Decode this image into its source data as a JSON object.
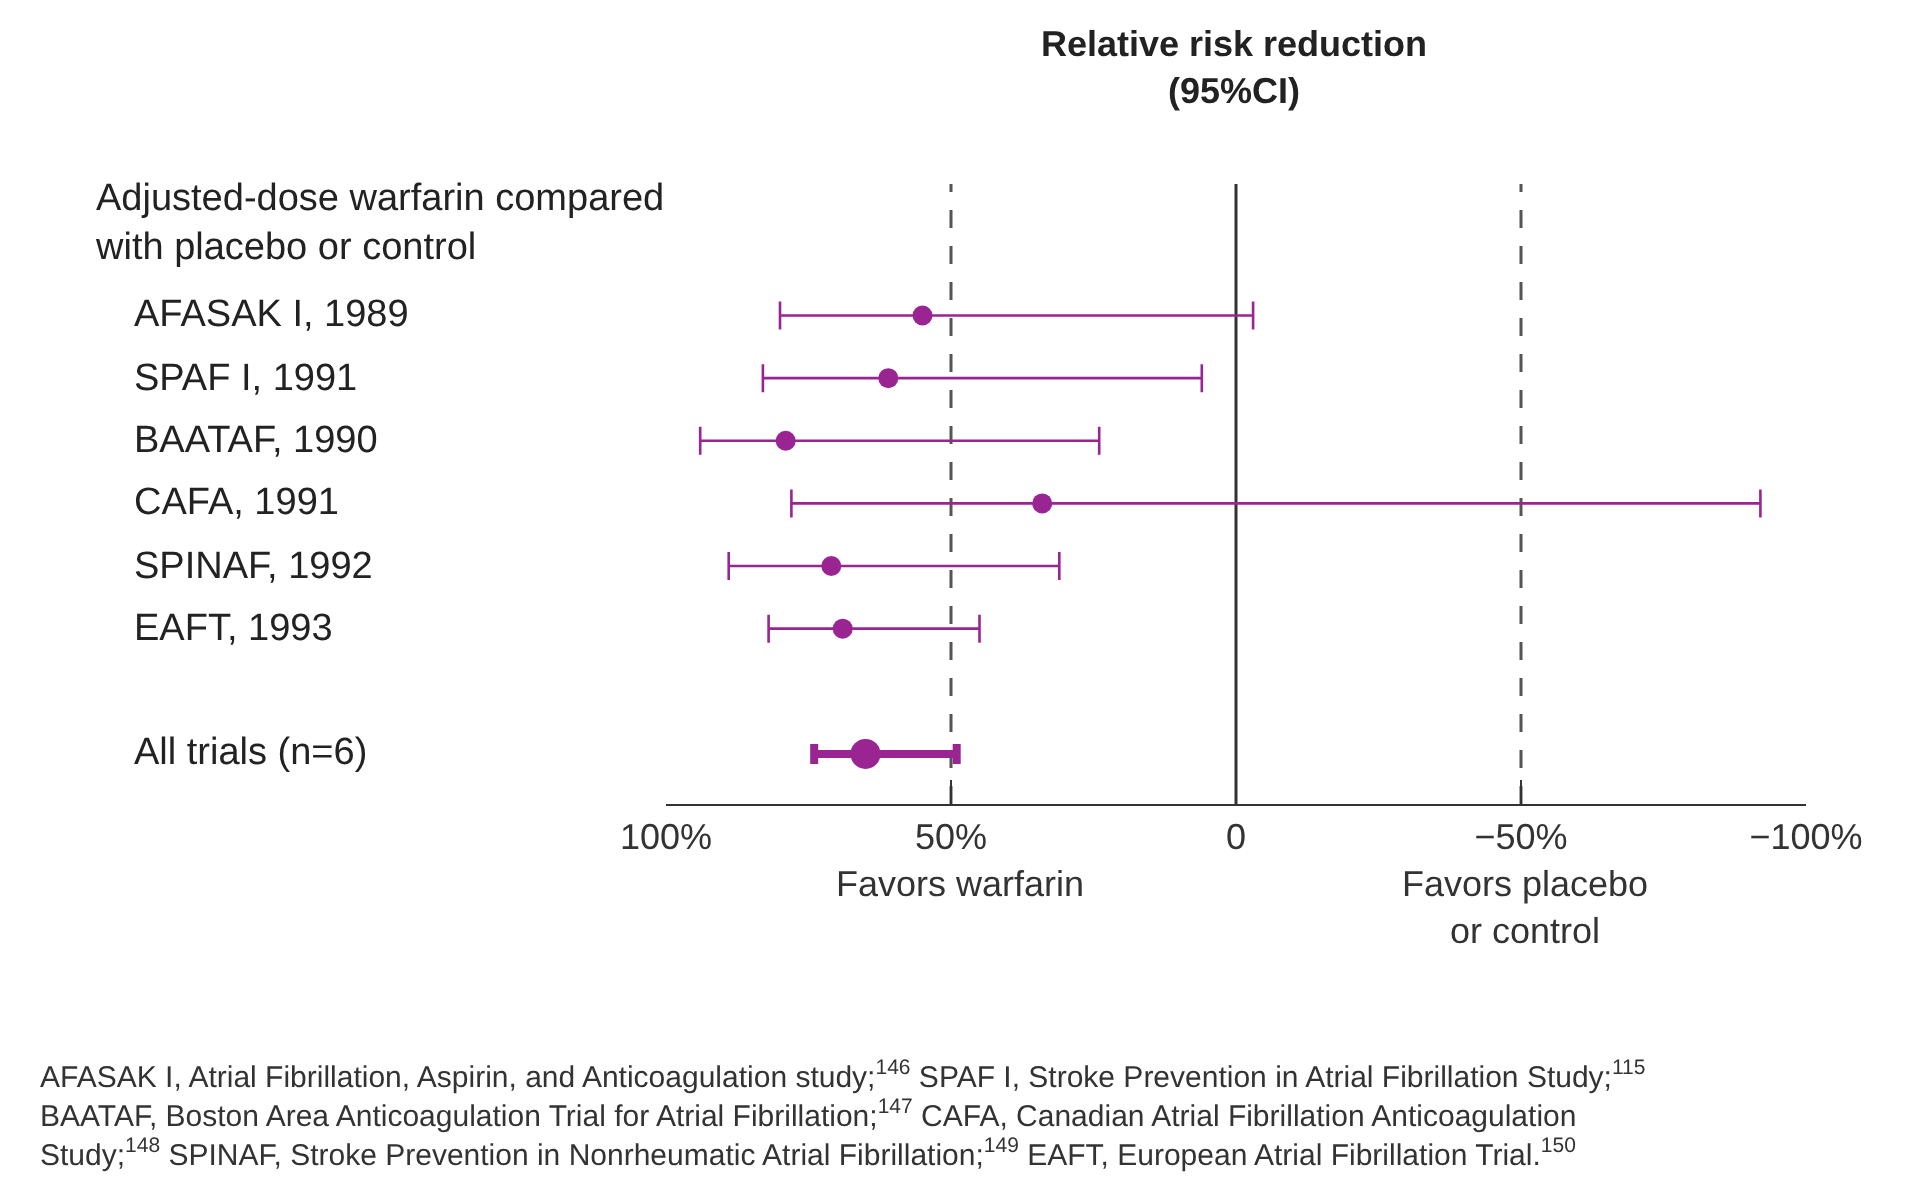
{
  "chart_data": {
    "type": "scatter",
    "orientation": "horizontal",
    "title": "Relative risk reduction\n(95%CI)",
    "categories": [
      "AFASAK I, 1989",
      "SPAF I, 1991",
      "BAATAF, 1990",
      "CAFA, 1991",
      "SPINAF, 1992",
      "EAFT, 1993",
      "All trials (n=6)"
    ],
    "series": [
      {
        "color": "#9b2493",
        "values": [
          55,
          61,
          79,
          34,
          71,
          69,
          null
        ],
        "errors": [
          [
            -3,
            80
          ],
          [
            6,
            83
          ],
          [
            24,
            94
          ],
          [
            -92,
            78
          ],
          [
            31,
            89
          ],
          [
            45,
            82
          ],
          null
        ]
      },
      {
        "color": "#9b2493",
        "values": [
          null,
          null,
          null,
          null,
          null,
          null,
          65
        ],
        "errors": [
          null,
          null,
          null,
          null,
          null,
          null,
          [
            49,
            74
          ]
        ]
      }
    ],
    "xlim": [
      100,
      -100
    ],
    "xticks": [
      {
        "value": 100,
        "label": "100%"
      },
      {
        "value": 50,
        "label": "50%"
      },
      0,
      {
        "value": -50,
        "label": "−50%"
      },
      {
        "value": -100,
        "label": "−100%"
      }
    ],
    "tick_labels": "x",
    "marker": "circle",
    "grid": false,
    "ref_lines": [
      {
        "axis": "x",
        "value": 50,
        "line_style": "dashed",
        "color": "#555555"
      },
      {
        "axis": "x",
        "value": 0,
        "line_style": "solid",
        "color": "#333333"
      },
      {
        "axis": "x",
        "value": -50,
        "line_style": "dashed",
        "color": "#555555"
      }
    ],
    "annotations": [
      "Adjusted-dose warfarin compared\nwith placebo or control",
      "Favors warfarin",
      "Favors placebo\nor control",
      "AFASAK I, Atrial Fibrillation, Aspirin, and Anticoagulation study;$^{146}$ SPAF I, Stroke Prevention in Atrial Fibrillation Study;$^{115}$\nBAATAF, Boston Area Anticoagulation Trial for Atrial Fibrillation;$^{147}$ CAFA, Canadian Atrial Fibrillation Anticoagulation\nStudy;$^{148}$ SPINAF, Stroke Prevention in Nonrheumatic Atrial Fibrillation;$^{149}$ EAFT, European Atrial Fibrillation Trial.$^{150}$"
    ]
  }
}
